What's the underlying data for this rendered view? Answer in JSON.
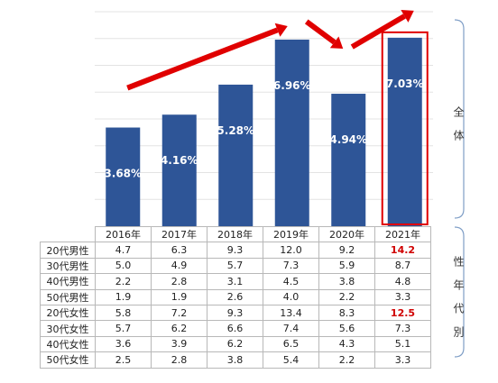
{
  "chart_data": {
    "type": "bar",
    "categories": [
      "2016年",
      "2017年",
      "2018年",
      "2019年",
      "2020年",
      "2021年"
    ],
    "values": [
      3.68,
      4.16,
      5.28,
      6.96,
      4.94,
      7.03
    ],
    "value_labels": [
      "3.68%",
      "4.16%",
      "5.28%",
      "6.96%",
      "4.94%",
      "7.03%"
    ],
    "ylim": [
      0,
      8
    ],
    "grid": true,
    "bar_color": "#2e5597",
    "highlight_index": 5,
    "highlight_color": "#e00000",
    "arrow_color": "#e00000"
  },
  "side_labels": {
    "top": "全体",
    "bottom": "性年代別"
  },
  "table": {
    "rows": [
      {
        "label": "20代男性",
        "values": [
          "4.7",
          "6.3",
          "9.3",
          "12.0",
          "9.2",
          "14.2"
        ]
      },
      {
        "label": "30代男性",
        "values": [
          "5.0",
          "4.9",
          "5.7",
          "7.3",
          "5.9",
          "8.7"
        ]
      },
      {
        "label": "40代男性",
        "values": [
          "2.2",
          "2.8",
          "3.1",
          "4.5",
          "3.8",
          "4.8"
        ]
      },
      {
        "label": "50代男性",
        "values": [
          "1.9",
          "1.9",
          "2.6",
          "4.0",
          "2.2",
          "3.3"
        ]
      },
      {
        "label": "20代女性",
        "values": [
          "5.8",
          "7.2",
          "9.3",
          "13.4",
          "8.3",
          "12.5"
        ]
      },
      {
        "label": "30代女性",
        "values": [
          "5.7",
          "6.2",
          "6.6",
          "7.4",
          "5.6",
          "7.3"
        ]
      },
      {
        "label": "40代女性",
        "values": [
          "3.6",
          "3.9",
          "6.2",
          "6.5",
          "4.3",
          "5.1"
        ]
      },
      {
        "label": "50代女性",
        "values": [
          "2.5",
          "2.8",
          "3.8",
          "5.4",
          "2.2",
          "3.3"
        ]
      }
    ],
    "highlighted_cells": [
      [
        0,
        5
      ],
      [
        4,
        5
      ]
    ]
  }
}
